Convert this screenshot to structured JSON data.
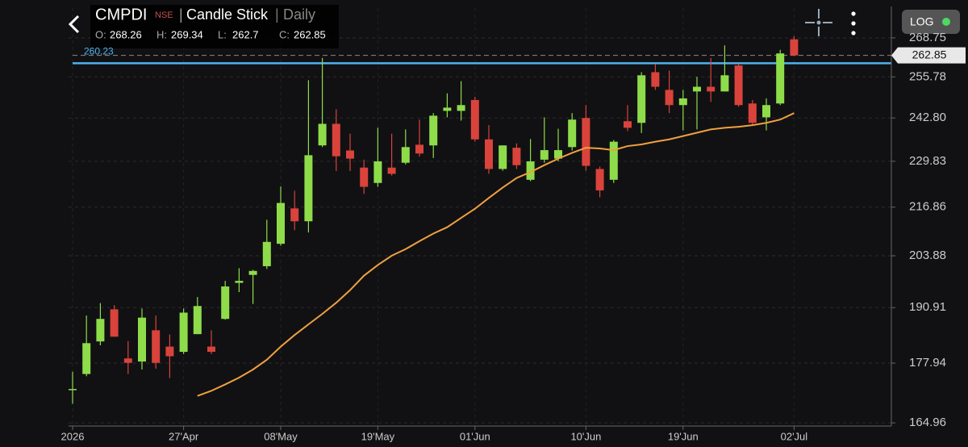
{
  "chart_data": {
    "type": "candlestick",
    "title": "CMPDI",
    "exchange": "NSE",
    "chart_style": "Candle Stick",
    "interval": "Daily",
    "ohlc_labels": [
      "O:",
      "H:",
      "L:",
      "C:"
    ],
    "scale_button": "LOG",
    "log": true,
    "up_color": "#8fdc4a",
    "down_color": "#d9433b",
    "categories": [
      "2026",
      null,
      null,
      null,
      null,
      null,
      null,
      null,
      "27'Apr",
      null,
      null,
      null,
      null,
      null,
      null,
      "08'May",
      null,
      null,
      null,
      null,
      null,
      null,
      "19'May",
      null,
      null,
      null,
      null,
      null,
      null,
      "01'Jun",
      null,
      null,
      null,
      null,
      null,
      null,
      null,
      "10'Jun",
      null,
      null,
      null,
      null,
      null,
      null,
      "19'Jun",
      null,
      null,
      null,
      null,
      null,
      null,
      null,
      "02'Jul"
    ],
    "open": [
      172,
      175.5,
      182.9,
      190.5,
      179,
      178.3,
      185.5,
      181.7,
      180.5,
      184.6,
      181.7,
      188.2,
      197,
      199,
      201.2,
      207,
      216.5,
      213,
      234.5,
      241,
      233,
      228,
      223.6,
      228,
      229.4,
      234.7,
      234.5,
      245,
      245,
      248.4,
      236.3,
      227.6,
      233.8,
      224.5,
      230.3,
      230.6,
      234,
      242.8,
      227.6,
      224.5,
      241.8,
      241.3,
      257.3,
      251.6,
      246.8,
      251.1,
      252.6,
      251.1,
      259.5,
      247.3,
      243,
      247.3,
      268.26
    ],
    "high": [
      176,
      189,
      192,
      191.5,
      183,
      190.7,
      189,
      184.5,
      190.7,
      193.5,
      185.5,
      197.5,
      200.7,
      200.3,
      213.4,
      222.6,
      221.4,
      254.7,
      262,
      245.5,
      238,
      230.3,
      239.8,
      238,
      239.3,
      242.3,
      244.3,
      250.5,
      254.4,
      249.4,
      240.6,
      234.5,
      235.1,
      236.4,
      243,
      239.5,
      244.3,
      246.8,
      228.3,
      236.1,
      246.8,
      257.3,
      260,
      257.8,
      251.6,
      255.8,
      262,
      266.2,
      260,
      248.4,
      248.9,
      264.7,
      269.34
    ],
    "low": [
      169,
      175,
      182,
      184,
      175.5,
      176.5,
      176.7,
      174.6,
      180,
      184.6,
      180,
      188,
      194.7,
      191.8,
      200.5,
      206.5,
      210.6,
      210,
      234,
      227,
      227,
      220.5,
      222.5,
      225.7,
      228.9,
      231.2,
      230.8,
      243,
      242,
      235.6,
      226.2,
      227.1,
      227.6,
      224.1,
      229.4,
      229.8,
      233,
      227.1,
      219.6,
      223.6,
      238.8,
      238.2,
      251.6,
      244.3,
      239,
      239.3,
      247.8,
      251.1,
      246.3,
      240.5,
      239,
      246.8,
      262.7
    ],
    "close": [
      172.2,
      182.5,
      188.2,
      184,
      178,
      188.5,
      178,
      179.5,
      189.7,
      191.3,
      180.5,
      196.1,
      197.5,
      200,
      207.5,
      218,
      213,
      231.6,
      241,
      231.3,
      230.6,
      222.5,
      229.8,
      226.2,
      234,
      232.1,
      243.5,
      246,
      246.8,
      236.3,
      227.6,
      234.5,
      228.7,
      229.8,
      233.1,
      233.1,
      242.3,
      228.5,
      221.5,
      235.6,
      239.8,
      256.3,
      252.6,
      246.8,
      248.9,
      252.6,
      251.1,
      256.3,
      246.8,
      241.3,
      246.8,
      263.5,
      262.85
    ],
    "moving_average": {
      "color": "#f0a040",
      "values": [
        null,
        null,
        null,
        null,
        null,
        null,
        null,
        null,
        null,
        170.7,
        171.8,
        173.2,
        174.7,
        176.5,
        178.7,
        181.7,
        184.4,
        186.9,
        189.4,
        192.1,
        195.2,
        198.8,
        201.5,
        203.9,
        205.6,
        207.7,
        209.7,
        211.4,
        213.9,
        216.4,
        219.4,
        222.3,
        225,
        226.7,
        228.7,
        230.6,
        232.3,
        233.8,
        233.6,
        233.1,
        234.3,
        234.8,
        235.6,
        236.3,
        237.3,
        238.3,
        239.3,
        239.8,
        240.1,
        240.6,
        241.3,
        242.3,
        244.3
      ]
    },
    "hline": {
      "value": 260.23,
      "color": "#4fb3f0"
    },
    "ylim": [
      164.3,
      279.1
    ],
    "yticks": [
      164.96,
      177.94,
      190.91,
      203.88,
      216.86,
      229.83,
      {
        "value": 242.8,
        "label": "242.80"
      },
      255.78,
      268.75
    ]
  }
}
